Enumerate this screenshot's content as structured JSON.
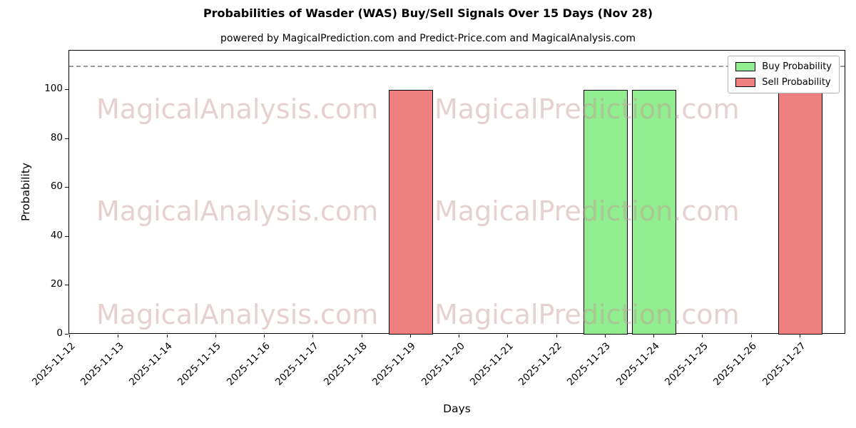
{
  "chart_data": {
    "type": "bar",
    "title": "Probabilities of Wasder (WAS) Buy/Sell Signals Over 15 Days (Nov 28)",
    "subtitle": "powered by MagicalPrediction.com and Predict-Price.com and MagicalAnalysis.com",
    "xlabel": "Days",
    "ylabel": "Probability",
    "categories": [
      "2025-11-12",
      "2025-11-13",
      "2025-11-14",
      "2025-11-15",
      "2025-11-16",
      "2025-11-17",
      "2025-11-18",
      "2025-11-19",
      "2025-11-20",
      "2025-11-21",
      "2025-11-22",
      "2025-11-23",
      "2025-11-24",
      "2025-11-25",
      "2025-11-26",
      "2025-11-27"
    ],
    "series": [
      {
        "name": "Buy Probability",
        "color": "#90ee90",
        "values": [
          0,
          0,
          0,
          0,
          0,
          0,
          0,
          0,
          0,
          0,
          0,
          100,
          100,
          0,
          0,
          0
        ]
      },
      {
        "name": "Sell Probability",
        "color": "#f08080",
        "values": [
          0,
          0,
          0,
          0,
          0,
          0,
          0,
          100,
          0,
          0,
          0,
          0,
          0,
          0,
          0,
          100
        ]
      }
    ],
    "ylim": [
      0,
      116
    ],
    "yticks": [
      0,
      20,
      40,
      60,
      80,
      100
    ],
    "threshold_line": {
      "y": 110,
      "style": "dashed",
      "color": "#9a9a9a"
    },
    "legend": {
      "position": "top-right"
    },
    "grid": false,
    "watermarks": [
      "MagicalAnalysis.com",
      "MagicalPrediction.com"
    ]
  }
}
